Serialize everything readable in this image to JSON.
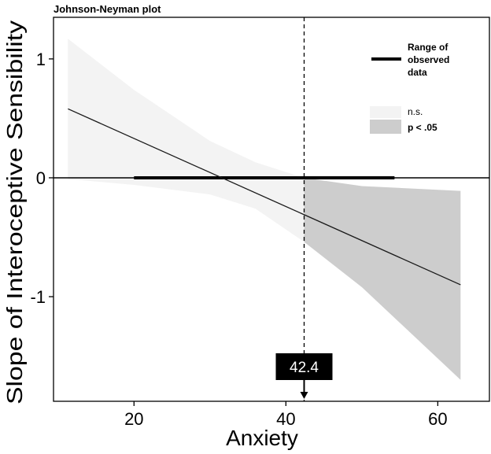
{
  "chart_data": {
    "type": "line",
    "title": "Johnson-Neyman plot",
    "xlabel": "Anxiety",
    "ylabel": "Slope of Interoceptive Sensibility",
    "xlim": [
      9.4,
      66.8
    ],
    "ylim": [
      -1.88,
      1.35
    ],
    "xticks": [
      20,
      40,
      60
    ],
    "yticks": [
      1,
      0,
      -1
    ],
    "xtick_labels": [
      "20",
      "40",
      "60"
    ],
    "ytick_labels": [
      "1",
      "0",
      "-1"
    ],
    "slope_line": {
      "x": [
        11.3,
        63.0
      ],
      "y": [
        0.58,
        -0.9
      ]
    },
    "confidence_band": {
      "x": [
        11.3,
        20,
        30,
        36,
        42.4,
        50,
        63.0
      ],
      "upper": [
        1.17,
        0.74,
        0.31,
        0.13,
        0.0,
        -0.07,
        -0.11
      ],
      "lower": [
        -0.01,
        -0.06,
        -0.14,
        -0.26,
        -0.54,
        -0.92,
        -1.7
      ]
    },
    "observed_range": {
      "x": [
        20,
        54.3
      ],
      "y": 0
    },
    "significance_threshold": {
      "x": 42.4,
      "label": "42.4"
    },
    "legend": {
      "range_label": "Range of observed data",
      "ns_label": "n.s.",
      "sig_label": "p < .05",
      "position": "top-right"
    },
    "colors": {
      "ns_fill": "#f3f3f3",
      "sig_fill": "#cdcdcd",
      "line": "#1a1a1a"
    }
  }
}
